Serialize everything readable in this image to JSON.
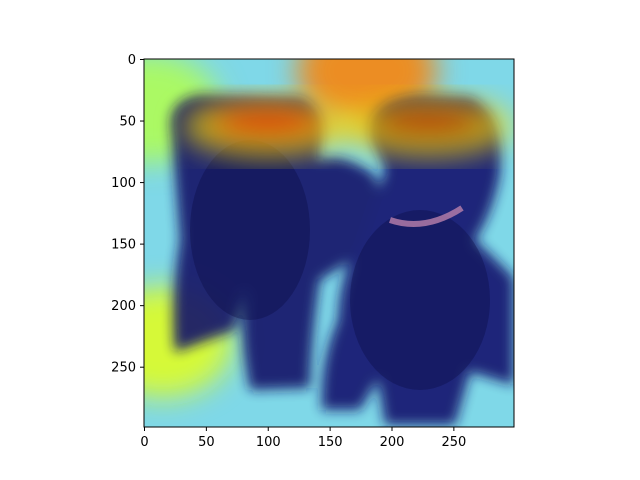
{
  "chart_data": {
    "type": "heatmap",
    "title": "",
    "xlabel": "",
    "ylabel": "",
    "xlim": [
      0,
      299
    ],
    "ylim": [
      299,
      0
    ],
    "x_ticks": [
      0,
      50,
      100,
      150,
      200,
      250
    ],
    "y_ticks": [
      0,
      50,
      100,
      150,
      200,
      250
    ],
    "image_description": "Photo of two black curly-coated dogs overlaid with an attention heatmap (jet colormap)",
    "overlay": {
      "colormap": "jet",
      "hot_regions": [
        {
          "label": "left dog head",
          "x": 100,
          "y": 55,
          "intensity": 0.9
        },
        {
          "label": "right dog head",
          "x": 230,
          "y": 55,
          "intensity": 0.95
        },
        {
          "label": "top background center",
          "x": 180,
          "y": 10,
          "intensity": 0.75
        },
        {
          "label": "bottom-left floor",
          "x": 15,
          "y": 230,
          "intensity": 0.6
        },
        {
          "label": "left edge",
          "x": 5,
          "y": 40,
          "intensity": 0.55
        }
      ],
      "cold_regions": [
        {
          "label": "dog bodies",
          "x": 170,
          "y": 220,
          "intensity": 0.05
        }
      ]
    }
  }
}
